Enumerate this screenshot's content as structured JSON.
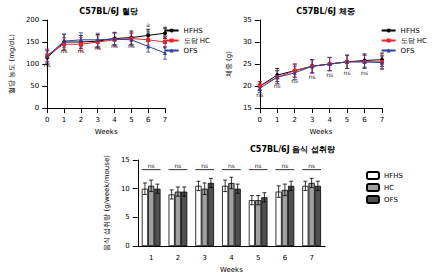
{
  "chart_data": [
    {
      "type": "line",
      "title": "C57BL/6J 혈당",
      "x_label": "Weeks",
      "y_label": "혈당 농도 (mg/dL)",
      "x": [
        0,
        1,
        2,
        3,
        4,
        5,
        6,
        7
      ],
      "xlim": [
        0,
        7
      ],
      "xticks": [
        0,
        1,
        2,
        3,
        4,
        5,
        6,
        7
      ],
      "ylim": [
        0,
        200
      ],
      "yticks": [
        0,
        50,
        100,
        150,
        200
      ],
      "grid": false,
      "legend": "right",
      "series": [
        {
          "name": "HFHS",
          "color": "#000000",
          "marker": "circle",
          "values": [
            115,
            150,
            150,
            152,
            158,
            160,
            165,
            170
          ],
          "errors": [
            15,
            18,
            15,
            15,
            14,
            15,
            14,
            12
          ]
        },
        {
          "name": "도담 HC",
          "color": "#e8262b",
          "marker": "square",
          "values": [
            120,
            145,
            145,
            150,
            155,
            158,
            155,
            150
          ],
          "errors": [
            14,
            15,
            15,
            14,
            15,
            14,
            12,
            12
          ]
        },
        {
          "name": "OFS",
          "color": "#2e3fa0",
          "marker": "triangle",
          "values": [
            118,
            152,
            155,
            155,
            157,
            155,
            140,
            125
          ],
          "errors": [
            14,
            15,
            16,
            15,
            14,
            14,
            13,
            14
          ]
        }
      ],
      "annotations": [
        {
          "x": 0,
          "y": 92,
          "text": "ns"
        },
        {
          "x": 1,
          "y": 125,
          "text": "ns"
        },
        {
          "x": 2,
          "y": 125,
          "text": "ns"
        },
        {
          "x": 3,
          "y": 130,
          "text": "ns"
        },
        {
          "x": 4,
          "y": 135,
          "text": "ns"
        },
        {
          "x": 5,
          "y": 135,
          "text": "ns"
        },
        {
          "x": 6,
          "y": 182,
          "text": "a"
        },
        {
          "x": 6,
          "y": 168,
          "text": "b"
        },
        {
          "x": 7,
          "y": 178,
          "text": "a"
        },
        {
          "x": 7,
          "y": 157,
          "text": "b"
        },
        {
          "x": 7,
          "y": 133,
          "text": "c"
        }
      ]
    },
    {
      "type": "line",
      "title": "C57BL/6J 체중",
      "x_label": "Weeks",
      "y_label": "체중 (g)",
      "x": [
        0,
        1,
        2,
        3,
        4,
        5,
        6,
        7
      ],
      "xlim": [
        0,
        7
      ],
      "xticks": [
        0,
        1,
        2,
        3,
        4,
        5,
        6,
        7
      ],
      "ylim": [
        15,
        35
      ],
      "yticks": [
        15,
        20,
        25,
        30,
        35
      ],
      "grid": false,
      "legend": "right",
      "series": [
        {
          "name": "HFHS",
          "color": "#000000",
          "marker": "circle",
          "values": [
            20,
            22.5,
            23.5,
            24.5,
            25,
            25.5,
            25.8,
            26
          ],
          "errors": [
            1,
            1.5,
            1.5,
            1.5,
            1.5,
            1.5,
            1.5,
            1.5
          ]
        },
        {
          "name": "도담 HC",
          "color": "#e8262b",
          "marker": "square",
          "values": [
            20,
            22,
            23.5,
            24.5,
            25,
            25.5,
            25.5,
            25.5
          ],
          "errors": [
            1,
            1.5,
            1.5,
            1.5,
            1.5,
            1.5,
            1.5,
            1.5
          ]
        },
        {
          "name": "OFS",
          "color": "#2e3fa0",
          "marker": "triangle",
          "values": [
            19.5,
            22,
            23,
            24.5,
            25,
            25.5,
            25.5,
            25.3
          ],
          "errors": [
            1,
            1.5,
            1.5,
            1.5,
            1.5,
            1.5,
            1.5,
            1.5
          ]
        }
      ],
      "annotations": [
        {
          "x": 0,
          "y": 17.5,
          "text": "ns"
        },
        {
          "x": 1,
          "y": 19.5,
          "text": "ns"
        },
        {
          "x": 2,
          "y": 20.5,
          "text": "ns"
        },
        {
          "x": 3,
          "y": 21.5,
          "text": "ns"
        },
        {
          "x": 4,
          "y": 22,
          "text": "ns"
        },
        {
          "x": 5,
          "y": 22.5,
          "text": "ns"
        },
        {
          "x": 6,
          "y": 22.5,
          "text": "ns"
        }
      ]
    },
    {
      "type": "bar",
      "title": "C57BL/6J 음식 섭취량",
      "x_label": "Weeks",
      "y_label": "음식 섭취량 (g/week/mouse)",
      "categories": [
        "1",
        "2",
        "3",
        "4",
        "5",
        "6",
        "7"
      ],
      "ylim": [
        0,
        15
      ],
      "yticks": [
        0,
        5,
        10,
        15
      ],
      "grid": false,
      "legend": "right",
      "series": [
        {
          "name": "HFHS",
          "color": "#ffffff",
          "values": [
            10,
            9,
            10.5,
            10.5,
            8,
            9.5,
            10.5
          ],
          "errors": [
            1,
            0.8,
            0.8,
            1,
            0.8,
            1,
            0.8
          ]
        },
        {
          "name": "HC",
          "color": "#a0a0a0",
          "values": [
            10.5,
            9.5,
            10,
            11,
            8,
            9.8,
            11
          ],
          "errors": [
            1,
            0.8,
            1,
            1,
            0.8,
            1,
            0.8
          ]
        },
        {
          "name": "OFS",
          "color": "#505050",
          "values": [
            10,
            9.5,
            11,
            10,
            8.5,
            10.5,
            10.5
          ],
          "errors": [
            0.8,
            0.8,
            0.8,
            0.8,
            0.8,
            0.8,
            0.8
          ]
        }
      ],
      "annotations": [
        {
          "x": "1",
          "y": 13.5,
          "text": "ns"
        },
        {
          "x": "2",
          "y": 13.5,
          "text": "ns"
        },
        {
          "x": "3",
          "y": 13.5,
          "text": "ns"
        },
        {
          "x": "4",
          "y": 13.5,
          "text": "ns"
        },
        {
          "x": "5",
          "y": 13.5,
          "text": "ns"
        },
        {
          "x": "6",
          "y": 13.5,
          "text": "ns"
        },
        {
          "x": "7",
          "y": 13.5,
          "text": "ns"
        }
      ]
    }
  ]
}
